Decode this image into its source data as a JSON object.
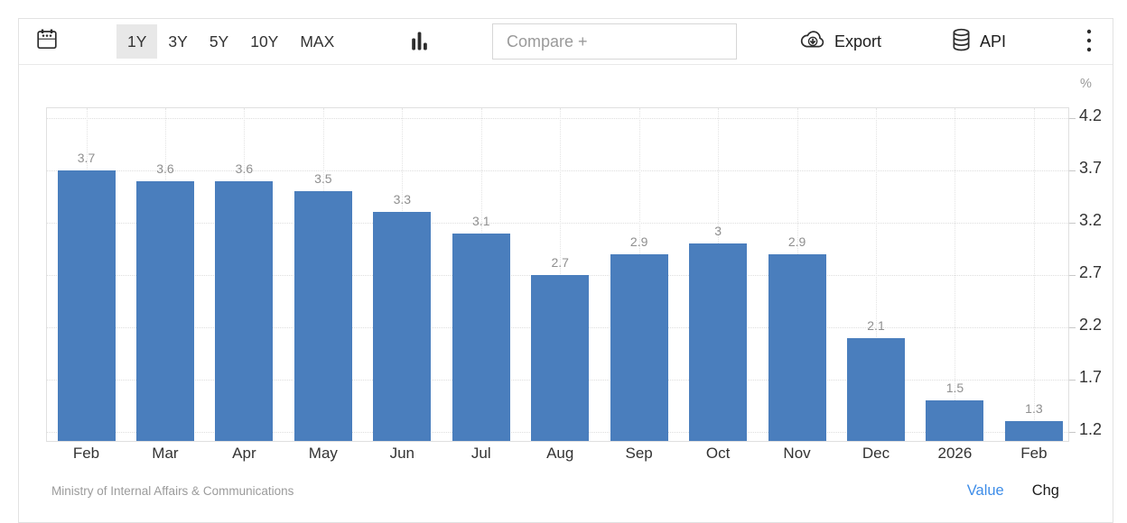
{
  "toolbar": {
    "ranges": [
      {
        "label": "1Y",
        "active": true
      },
      {
        "label": "3Y",
        "active": false
      },
      {
        "label": "5Y",
        "active": false
      },
      {
        "label": "10Y",
        "active": false
      },
      {
        "label": "MAX",
        "active": false
      }
    ],
    "compare": {
      "placeholder": "Compare +",
      "value": ""
    },
    "export_label": "Export",
    "api_label": "API"
  },
  "chart_data": {
    "type": "bar",
    "unit_label": "%",
    "categories": [
      "Feb",
      "Mar",
      "Apr",
      "May",
      "Jun",
      "Jul",
      "Aug",
      "Sep",
      "Oct",
      "Nov",
      "Dec",
      "2026",
      "Feb"
    ],
    "values": [
      3.7,
      3.6,
      3.6,
      3.5,
      3.3,
      3.1,
      2.7,
      2.9,
      3,
      2.9,
      2.1,
      1.5,
      1.3
    ],
    "value_labels": [
      "3.7",
      "3.6",
      "3.6",
      "3.5",
      "3.3",
      "3.1",
      "2.7",
      "2.9",
      "3",
      "2.9",
      "2.1",
      "1.5",
      "1.3"
    ],
    "yticks": [
      "4.2",
      "3.7",
      "3.2",
      "2.7",
      "2.2",
      "1.7",
      "1.2"
    ],
    "ylim": [
      1.1,
      4.3
    ],
    "grid": true,
    "legend": "none",
    "bar_color": "#4a7ebd"
  },
  "footer": {
    "source": "Ministry of Internal Affairs & Communications",
    "value_toggle": "Value",
    "chg_toggle": "Chg"
  },
  "colors": {
    "bar": "#4a7ebd",
    "value_link": "#3e8de8",
    "axis_text": "#333333",
    "muted_text": "#9a9a9a",
    "border": "#e2e2e2",
    "active_range_bg": "#e8e8e8"
  }
}
